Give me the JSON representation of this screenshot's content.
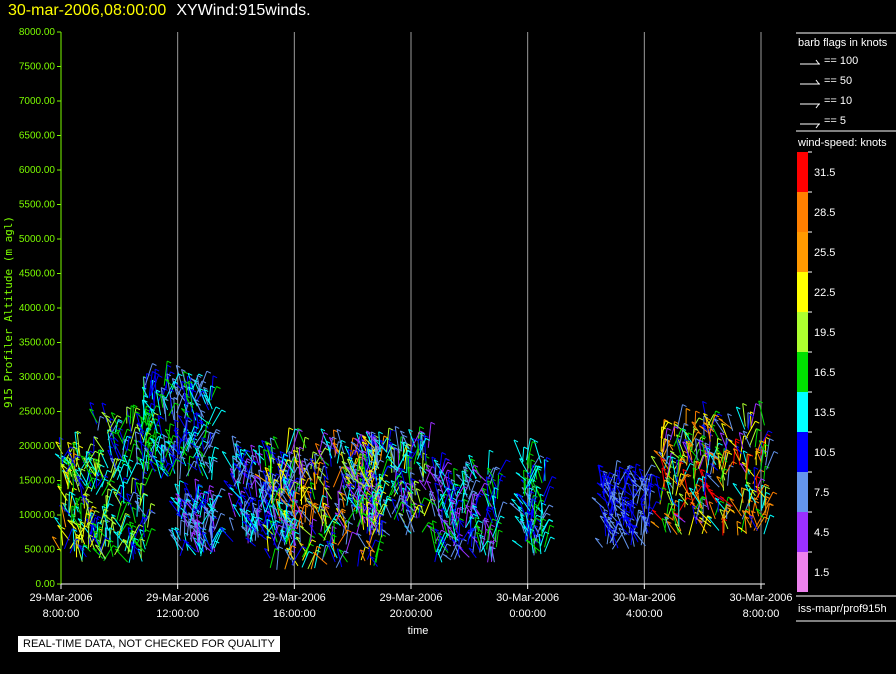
{
  "header": {
    "timestamp": "30-mar-2006,08:00:00",
    "plot_name": "XYWind:915winds."
  },
  "legend": {
    "barb_title": "barb flags in knots",
    "barbs": [
      {
        "label": "== 100"
      },
      {
        "label": "== 50"
      },
      {
        "label": "== 10"
      },
      {
        "label": "== 5"
      }
    ],
    "speed_title": "wind-speed: knots",
    "speed_bins": [
      {
        "label": "31.5",
        "color": "#ff0000"
      },
      {
        "label": "28.5",
        "color": "#ff7f00"
      },
      {
        "label": "25.5",
        "color": "#ff9900"
      },
      {
        "label": "22.5",
        "color": "#ffff00"
      },
      {
        "label": "19.5",
        "color": "#adff2f"
      },
      {
        "label": "16.5",
        "color": "#00e000"
      },
      {
        "label": "13.5",
        "color": "#00ffff"
      },
      {
        "label": "10.5",
        "color": "#0000ff"
      },
      {
        "label": "7.5",
        "color": "#6495ed"
      },
      {
        "label": "4.5",
        "color": "#9b30ff"
      },
      {
        "label": "1.5",
        "color": "#ee82ee"
      }
    ],
    "source_path": "iss-mapr/prof915h"
  },
  "quality_note": "REAL-TIME DATA, NOT CHECKED FOR QUALITY",
  "chart_data": {
    "type": "scatter",
    "title": "XYWind:915winds.",
    "xlabel": "time",
    "ylabel": "915 Profiler Altitude (m agl)",
    "ylim": [
      0,
      8000
    ],
    "xlim": [
      "29-Mar-2006 08:00:00",
      "30-Mar-2006 08:00:00"
    ],
    "y_ticks": [
      "8000.00",
      "7500.00",
      "7000.00",
      "6500.00",
      "6000.00",
      "5500.00",
      "5000.00",
      "4500.00",
      "4000.00",
      "3500.00",
      "3000.00",
      "2500.00",
      "2000.00",
      "1500.00",
      "1000.00",
      "500.00",
      "0.00"
    ],
    "x_ticks": [
      {
        "date": "29-Mar-2006",
        "time": "8:00:00",
        "hour": 0
      },
      {
        "date": "29-Mar-2006",
        "time": "12:00:00",
        "hour": 4
      },
      {
        "date": "29-Mar-2006",
        "time": "16:00:00",
        "hour": 8
      },
      {
        "date": "29-Mar-2006",
        "time": "20:00:00",
        "hour": 12
      },
      {
        "date": "30-Mar-2006",
        "time": "0:00:00",
        "hour": 16
      },
      {
        "date": "30-Mar-2006",
        "time": "4:00:00",
        "hour": 20
      },
      {
        "date": "30-Mar-2006",
        "time": "8:00:00",
        "hour": 24
      }
    ],
    "grid": "vertical lines at x ticks",
    "series": [
      {
        "hour_range": [
          0.0,
          1.2
        ],
        "alt_range": [
          300,
          1900
        ],
        "speed_range": [
          9,
          25
        ]
      },
      {
        "hour_range": [
          1.2,
          3.0
        ],
        "alt_range": [
          300,
          2400
        ],
        "speed_range": [
          8,
          21
        ]
      },
      {
        "hour_range": [
          2.8,
          5.2
        ],
        "alt_range": [
          1500,
          2900
        ],
        "speed_range": [
          6,
          17
        ]
      },
      {
        "hour_range": [
          4.0,
          5.3
        ],
        "alt_range": [
          400,
          1200
        ],
        "speed_range": [
          4,
          14
        ]
      },
      {
        "hour_range": [
          5.8,
          8.0
        ],
        "alt_range": [
          500,
          1800
        ],
        "speed_range": [
          5,
          15
        ]
      },
      {
        "hour_range": [
          7.0,
          11.0
        ],
        "alt_range": [
          200,
          2000
        ],
        "speed_range": [
          3,
          30
        ]
      },
      {
        "hour_range": [
          10.0,
          12.6
        ],
        "alt_range": [
          700,
          2000
        ],
        "speed_range": [
          3,
          22
        ]
      },
      {
        "hour_range": [
          12.8,
          15.0
        ],
        "alt_range": [
          300,
          1600
        ],
        "speed_range": [
          3,
          17
        ]
      },
      {
        "hour_range": [
          15.8,
          16.6
        ],
        "alt_range": [
          400,
          1800
        ],
        "speed_range": [
          8,
          18
        ]
      },
      {
        "hour_range": [
          18.5,
          20.2
        ],
        "alt_range": [
          500,
          1500
        ],
        "speed_range": [
          6,
          12
        ]
      },
      {
        "hour_range": [
          20.5,
          24.2
        ],
        "alt_range": [
          700,
          2300
        ],
        "speed_range": [
          5,
          32
        ]
      }
    ]
  }
}
